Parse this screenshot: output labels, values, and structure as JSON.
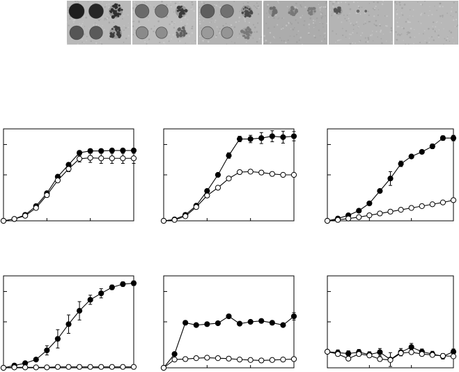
{
  "spot_panels": [
    {
      "bg": "#b9b9b9",
      "spots": [
        {
          "row": 0,
          "col": 0,
          "tone": "#1e1e1e",
          "size": 1.0
        },
        {
          "row": 0,
          "col": 1,
          "tone": "#262626",
          "size": 0.95
        },
        {
          "row": 0,
          "col": 2,
          "tone": "#2e2e2e",
          "size": 0.9,
          "speckled": true
        },
        {
          "row": 1,
          "col": 0,
          "tone": "#555555",
          "size": 0.9
        },
        {
          "row": 1,
          "col": 1,
          "tone": "#5a5a5a",
          "size": 0.85
        },
        {
          "row": 1,
          "col": 2,
          "tone": "#3c3c3c",
          "size": 0.8,
          "speckled": true
        }
      ]
    },
    {
      "bg": "#bdbdbd",
      "spots": [
        {
          "row": 0,
          "col": 0,
          "tone": "#6a6a6a",
          "size": 0.9
        },
        {
          "row": 0,
          "col": 1,
          "tone": "#767676",
          "size": 0.85
        },
        {
          "row": 0,
          "col": 2,
          "tone": "#3a3a3a",
          "size": 0.75,
          "speckled": true
        },
        {
          "row": 1,
          "col": 0,
          "tone": "#8a8a8a",
          "size": 0.8
        },
        {
          "row": 1,
          "col": 1,
          "tone": "#8e8e8e",
          "size": 0.75
        },
        {
          "row": 1,
          "col": 2,
          "tone": "#606060",
          "size": 0.7,
          "speckled": true
        }
      ]
    },
    {
      "bg": "#b3b3b3",
      "spots": [
        {
          "row": 0,
          "col": 0,
          "tone": "#5e5e5e",
          "size": 0.9
        },
        {
          "row": 0,
          "col": 1,
          "tone": "#707070",
          "size": 0.85
        },
        {
          "row": 0,
          "col": 2,
          "tone": "#4a4a4a",
          "size": 0.75,
          "speckled": true
        },
        {
          "row": 1,
          "col": 0,
          "tone": "#9a9a9a",
          "size": 0.8
        },
        {
          "row": 1,
          "col": 1,
          "tone": "#959595",
          "size": 0.75
        },
        {
          "row": 1,
          "col": 2,
          "tone": "#7a7a7a",
          "size": 0.7,
          "speckled": true
        }
      ]
    },
    {
      "bg": "#acacac",
      "spots": [
        {
          "row": 0,
          "col": 0,
          "tone": "#6e6e6e",
          "size": 0.6,
          "speckled": true
        },
        {
          "row": 0,
          "col": 1,
          "tone": "#787878",
          "size": 0.55,
          "speckled": true
        },
        {
          "row": 0,
          "col": 2,
          "tone": "#7c7c7c",
          "size": 0.5,
          "speckled": true
        }
      ]
    },
    {
      "bg": "#b4b4b4",
      "spots": [
        {
          "row": 0,
          "col": 0,
          "tone": "#555555",
          "size": 0.5,
          "speckled": true
        },
        {
          "row": 0,
          "col": 1,
          "tone": "#777777",
          "size": 0.15
        },
        {
          "row": 0,
          "col": 1.4,
          "tone": "#777777",
          "size": 0.12
        }
      ]
    },
    {
      "bg": "#b8b8b8",
      "spots": []
    }
  ],
  "chart_data": [
    {
      "type": "line",
      "xlim": [
        0,
        12
      ],
      "ylim": [
        0,
        2
      ],
      "grid": false,
      "legend": "none",
      "x": [
        0,
        1,
        2,
        3,
        4,
        5,
        6,
        7,
        8,
        9,
        10,
        11,
        12
      ],
      "series": [
        {
          "marker": "filled",
          "values": [
            0,
            0.04,
            0.13,
            0.32,
            0.6,
            0.96,
            1.22,
            1.48,
            1.52,
            1.52,
            1.53,
            1.53,
            1.53
          ],
          "errors": [
            0,
            0,
            0,
            0,
            0,
            0.03,
            0.04,
            0.04,
            0.03,
            0.03,
            0.03,
            0.03,
            0.03
          ]
        },
        {
          "marker": "open",
          "values": [
            0,
            0.04,
            0.11,
            0.28,
            0.56,
            0.88,
            1.13,
            1.35,
            1.37,
            1.36,
            1.36,
            1.36,
            1.36
          ],
          "errors": [
            0,
            0,
            0,
            0,
            0,
            0.04,
            0.06,
            0.07,
            0.1,
            0.11,
            0.11,
            0.11,
            0.11
          ]
        }
      ]
    },
    {
      "type": "line",
      "xlim": [
        0,
        12
      ],
      "ylim": [
        0,
        2
      ],
      "grid": false,
      "legend": "none",
      "x": [
        0,
        1,
        2,
        3,
        4,
        5,
        6,
        7,
        8,
        9,
        10,
        11,
        12
      ],
      "series": [
        {
          "marker": "filled",
          "values": [
            0,
            0.03,
            0.13,
            0.33,
            0.65,
            1.0,
            1.42,
            1.78,
            1.78,
            1.8,
            1.84,
            1.82,
            1.84
          ],
          "errors": [
            0,
            0,
            0,
            0,
            0,
            0.04,
            0.06,
            0.06,
            0.08,
            0.12,
            0.12,
            0.13,
            0.1
          ]
        },
        {
          "marker": "open",
          "values": [
            0,
            0.02,
            0.1,
            0.3,
            0.55,
            0.72,
            0.92,
            1.06,
            1.07,
            1.05,
            1.02,
            1.0,
            1.0
          ],
          "errors": [
            0,
            0,
            0,
            0,
            0,
            0.02,
            0.03,
            0.04,
            0.04,
            0.04,
            0.04,
            0.04,
            0.04
          ]
        }
      ]
    },
    {
      "type": "line",
      "xlim": [
        0,
        12
      ],
      "ylim": [
        0,
        2
      ],
      "grid": false,
      "legend": "none",
      "x": [
        0,
        1,
        2,
        3,
        4,
        5,
        6,
        7,
        8,
        9,
        10,
        11,
        12
      ],
      "series": [
        {
          "marker": "filled",
          "values": [
            0,
            0.05,
            0.12,
            0.22,
            0.38,
            0.65,
            0.92,
            1.24,
            1.4,
            1.5,
            1.62,
            1.8,
            1.8
          ],
          "errors": [
            0,
            0,
            0,
            0,
            0,
            0.04,
            0.15,
            0.06,
            0.04,
            0.04,
            0.05,
            0.05,
            0.06
          ]
        },
        {
          "marker": "open",
          "values": [
            0,
            0.02,
            0.05,
            0.08,
            0.12,
            0.16,
            0.2,
            0.24,
            0.28,
            0.32,
            0.36,
            0.4,
            0.45
          ],
          "errors": [
            0,
            0,
            0,
            0,
            0,
            0,
            0,
            0,
            0,
            0,
            0,
            0,
            0
          ]
        }
      ]
    },
    {
      "type": "line",
      "xlim": [
        0,
        12
      ],
      "ylim": [
        0,
        2
      ],
      "grid": false,
      "legend": "none",
      "x": [
        0,
        1,
        2,
        3,
        4,
        5,
        6,
        7,
        8,
        9,
        10,
        11,
        12
      ],
      "series": [
        {
          "marker": "filled",
          "values": [
            0,
            0.05,
            0.1,
            0.18,
            0.38,
            0.63,
            0.95,
            1.24,
            1.48,
            1.62,
            1.75,
            1.82,
            1.84
          ],
          "errors": [
            0,
            0,
            0,
            0,
            0.1,
            0.2,
            0.2,
            0.2,
            0.1,
            0.1,
            0.05,
            0.05,
            0.05
          ]
        },
        {
          "marker": "open",
          "values": [
            0,
            0.01,
            0.01,
            0.01,
            0.01,
            0.02,
            0.02,
            0.02,
            0.02,
            0.02,
            0.02,
            0.02,
            0.02
          ],
          "errors": [
            0,
            0,
            0,
            0,
            0,
            0,
            0,
            0,
            0,
            0,
            0,
            0,
            0
          ]
        }
      ]
    },
    {
      "type": "line",
      "xlim": [
        0,
        12
      ],
      "ylim": [
        0,
        2
      ],
      "grid": false,
      "legend": "none",
      "x": [
        0,
        1,
        2,
        3,
        4,
        5,
        6,
        7,
        8,
        9,
        10,
        11,
        12
      ],
      "series": [
        {
          "marker": "filled",
          "values": [
            0,
            0.3,
            0.98,
            0.93,
            0.95,
            0.97,
            1.12,
            0.96,
            1.0,
            1.02,
            0.98,
            0.93,
            1.12
          ],
          "errors": [
            0,
            0,
            0.02,
            0.02,
            0.02,
            0.02,
            0.04,
            0.02,
            0.02,
            0.02,
            0.02,
            0.02,
            0.08
          ]
        },
        {
          "marker": "open",
          "values": [
            0,
            0.18,
            0.19,
            0.21,
            0.22,
            0.21,
            0.2,
            0.18,
            0.17,
            0.16,
            0.17,
            0.18,
            0.19
          ],
          "errors": [
            0,
            0,
            0,
            0,
            0,
            0,
            0,
            0,
            0,
            0,
            0,
            0,
            0
          ]
        }
      ]
    },
    {
      "type": "line",
      "xlim": [
        0,
        12
      ],
      "ylim": [
        0,
        2
      ],
      "grid": false,
      "legend": "none",
      "x": [
        0,
        1,
        2,
        3,
        4,
        5,
        6,
        7,
        8,
        9,
        10,
        11,
        12
      ],
      "series": [
        {
          "marker": "filled",
          "values": [
            0.35,
            0.33,
            0.31,
            0.34,
            0.29,
            0.34,
            0.18,
            0.34,
            0.45,
            0.35,
            0.3,
            0.25,
            0.35
          ],
          "errors": [
            0,
            0.06,
            0.06,
            0.06,
            0.06,
            0.08,
            0.15,
            0.08,
            0.08,
            0.06,
            0.06,
            0.06,
            0.06
          ]
        },
        {
          "marker": "open",
          "values": [
            0.35,
            0.3,
            0.2,
            0.3,
            0.27,
            0.19,
            0.17,
            0.32,
            0.34,
            0.3,
            0.28,
            0.26,
            0.25
          ],
          "errors": [
            0,
            0,
            0,
            0,
            0,
            0,
            0,
            0,
            0,
            0,
            0,
            0,
            0
          ]
        }
      ]
    }
  ]
}
